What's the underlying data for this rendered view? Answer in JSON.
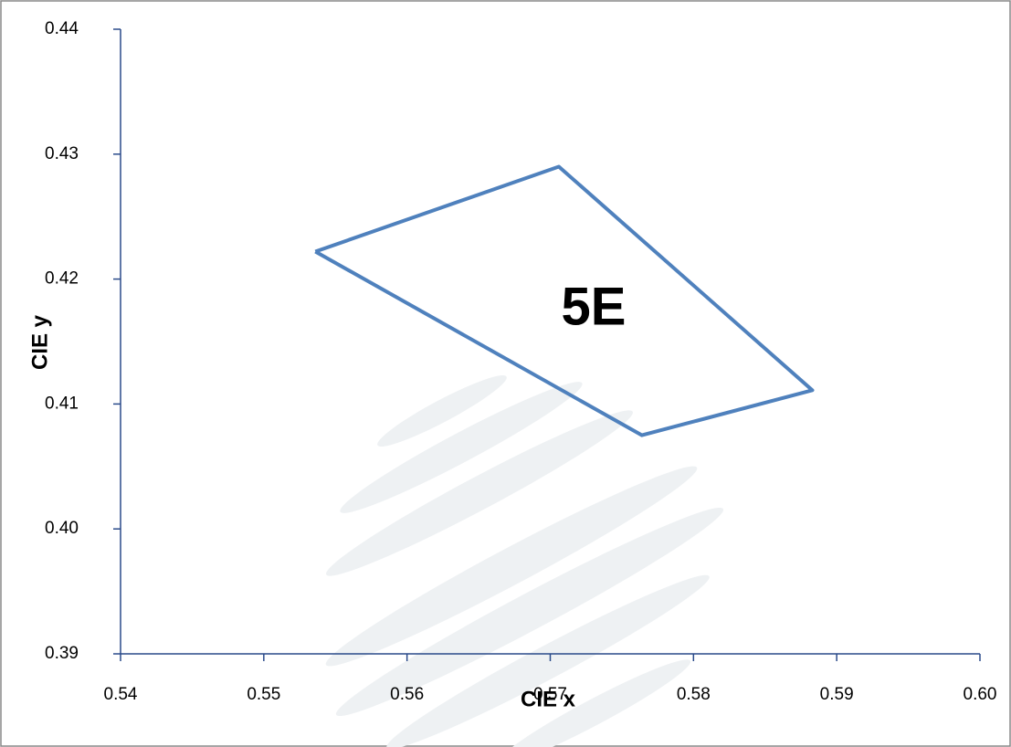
{
  "chart_data": {
    "type": "line",
    "x_label": "CIE x",
    "y_label": "CIE y",
    "annotation": "5E",
    "x": [
      0.5536,
      0.5706,
      0.5883,
      0.5764,
      0.5536
    ],
    "series": [
      {
        "color": "#4f81bd",
        "values": [
          0.4222,
          0.429,
          0.4111,
          0.4075,
          0.4222
        ]
      }
    ],
    "xlim": [
      0.54,
      0.6
    ],
    "xticks": [
      0.54,
      0.55,
      0.56,
      0.57,
      0.58,
      0.59,
      {
        "value": 0.6,
        "label": "0.60"
      }
    ],
    "ylim": [
      0.39,
      0.44
    ],
    "yticks": [
      0.39,
      {
        "value": 0.4,
        "label": "0.40"
      },
      0.41,
      0.42,
      0.43,
      0.44
    ],
    "grid": false
  }
}
